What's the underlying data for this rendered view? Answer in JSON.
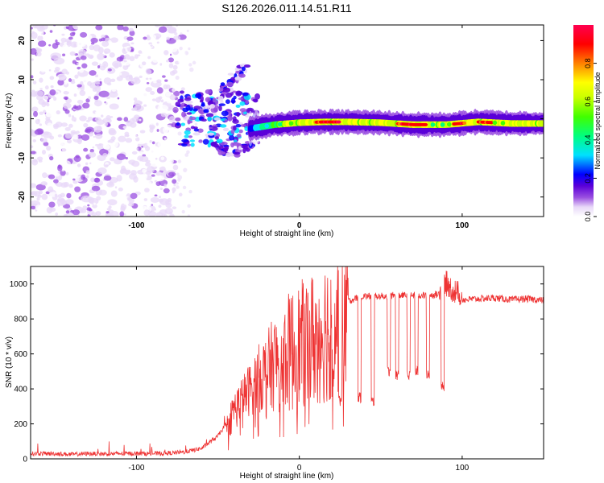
{
  "chart_data": [
    {
      "type": "heatmap",
      "title": "S126.2026.011.14.51.R11",
      "xlabel": "Height of straight line (km)",
      "ylabel": "Frequency (Hz)",
      "xlim": [
        -165,
        150
      ],
      "ylim": [
        -25,
        24
      ],
      "xticks": [
        -100,
        0,
        100
      ],
      "xtick_labels": [
        "-100",
        "0",
        "100"
      ],
      "yticks": [
        20,
        10,
        0,
        -10,
        -20
      ],
      "ytick_labels": [
        "20",
        "10",
        "0",
        "-10",
        "-20"
      ],
      "colorbar": {
        "label": "Normalized spectral amplitude",
        "range": [
          0.0,
          1.0
        ],
        "ticks": [
          0.0,
          0.2,
          0.4,
          0.6,
          0.8
        ],
        "tick_labels": [
          "0.0",
          "0.2",
          "0.4",
          "0.6",
          "0.8"
        ],
        "colors": [
          "#ffffff",
          "#e8d8f8",
          "#9a4fe0",
          "#5a00d8",
          "#0000ff",
          "#00e0ff",
          "#00ff80",
          "#40ff00",
          "#c8ff00",
          "#ffff00",
          "#ff8000",
          "#ff0000",
          "#ff0050"
        ]
      },
      "features": [
        {
          "name": "diffuse noise",
          "x_range": [
            -165,
            -75
          ],
          "y_range": [
            -25,
            24
          ],
          "level": 0.08
        },
        {
          "name": "scatter cluster",
          "x_range": [
            -75,
            -25
          ],
          "y_center": 0,
          "level": 0.35
        },
        {
          "name": "upper arm",
          "x": [
            -60,
            -52,
            -45,
            -38,
            -32
          ],
          "y": [
            2,
            5,
            8,
            11,
            13
          ],
          "level": 0.25
        },
        {
          "name": "lower arm",
          "x": [
            -55,
            -48,
            -40,
            -32,
            -25
          ],
          "y": [
            -4,
            -8,
            -8,
            -7,
            -5
          ],
          "level": 0.3
        },
        {
          "name": "stable carrier",
          "x": [
            -30,
            -15,
            0,
            15,
            30,
            50,
            70,
            90,
            110,
            130,
            150
          ],
          "y": [
            -2.5,
            -1.5,
            -1,
            -0.8,
            -0.8,
            -1,
            -1.5,
            -1.5,
            -0.8,
            -1.2,
            -1.2
          ],
          "level": 0.75
        }
      ]
    },
    {
      "type": "line",
      "xlabel": "Height of straight line (km)",
      "ylabel": "SNR (10 * v/v)",
      "xlim": [
        -165,
        150
      ],
      "ylim": [
        0,
        1100
      ],
      "xticks": [
        -100,
        0,
        100
      ],
      "xtick_labels": [
        "-100",
        "0",
        "100"
      ],
      "yticks": [
        0,
        200,
        400,
        600,
        800,
        1000
      ],
      "ytick_labels": [
        "0",
        "200",
        "400",
        "600",
        "800",
        "1000"
      ],
      "color": "#ee3333",
      "series": [
        {
          "name": "SNR",
          "x": [
            -165,
            -150,
            -140,
            -130,
            -120,
            -110,
            -100,
            -90,
            -80,
            -70,
            -60,
            -50,
            -45,
            -40,
            -35,
            -30,
            -25,
            -20,
            -15,
            -10,
            -5,
            0,
            5,
            10,
            15,
            20,
            25,
            30,
            35,
            40,
            50,
            60,
            70,
            80,
            85,
            90,
            95,
            100,
            110,
            120,
            130,
            140,
            150
          ],
          "y": [
            30,
            30,
            25,
            30,
            28,
            30,
            30,
            30,
            32,
            40,
            60,
            130,
            200,
            300,
            360,
            420,
            480,
            520,
            580,
            620,
            650,
            680,
            700,
            740,
            780,
            820,
            870,
            900,
            920,
            930,
            930,
            935,
            935,
            935,
            940,
            980,
            930,
            910,
            915,
            920,
            910,
            915,
            905
          ]
        }
      ],
      "dropouts": [
        {
          "x": 25,
          "y": 330
        },
        {
          "x": 37,
          "y": 350
        },
        {
          "x": 45,
          "y": 330
        },
        {
          "x": 55,
          "y": 500
        },
        {
          "x": 60,
          "y": 480
        },
        {
          "x": 67,
          "y": 480
        },
        {
          "x": 72,
          "y": 500
        },
        {
          "x": 79,
          "y": 480
        },
        {
          "x": 88,
          "y": 410
        }
      ]
    }
  ]
}
